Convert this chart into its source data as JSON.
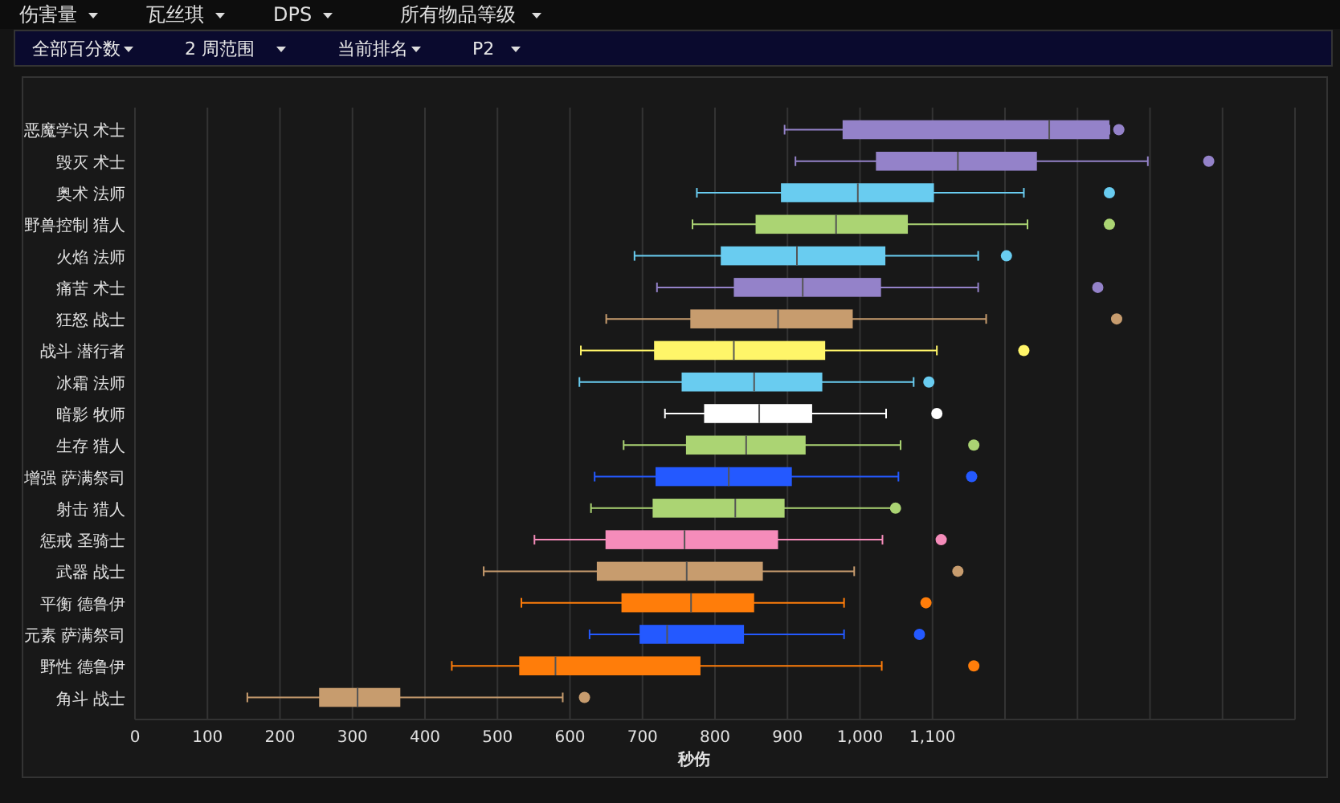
{
  "chart_data": {
    "type": "box",
    "orientation": "horizontal",
    "xlabel": "秒伤",
    "categories": [
      "恶魔学识 术士",
      "毁灭 术士",
      "奥术 法师",
      "野兽控制 猎人",
      "火焰 法师",
      "痛苦 术士",
      "狂怒 战士",
      "战斗 潜行者",
      "冰霜 法师",
      "暗影 牧师",
      "生存 猎人",
      "增强 萨满祭司",
      "射击 猎人",
      "惩戒 圣骑士",
      "武器 战士",
      "平衡 德鲁伊",
      "元素 萨满祭司",
      "野性 德鲁伊",
      "角斗 战士"
    ],
    "colors": [
      "#9482c9",
      "#9482c9",
      "#69ccf0",
      "#abd473",
      "#69ccf0",
      "#9482c9",
      "#c79c6e",
      "#fff569",
      "#69ccf0",
      "#ffffff",
      "#abd473",
      "#2459ff",
      "#abd473",
      "#f58cba",
      "#c79c6e",
      "#ff7d0a",
      "#2459ff",
      "#ff7d0a",
      "#c79c6e"
    ],
    "boxes": [
      {
        "low": 896,
        "q1": 976,
        "median": 1261,
        "q3": 1344,
        "high": 1344,
        "outliers": [
          1357
        ]
      },
      {
        "low": 911,
        "q1": 1022,
        "median": 1135,
        "q3": 1244,
        "high": 1397,
        "outliers": [
          1481
        ]
      },
      {
        "low": 775,
        "q1": 891,
        "median": 997,
        "q3": 1102,
        "high": 1226,
        "outliers": [
          1344
        ]
      },
      {
        "low": 769,
        "q1": 856,
        "median": 967,
        "q3": 1066,
        "high": 1231,
        "outliers": [
          1344
        ]
      },
      {
        "low": 689,
        "q1": 808,
        "median": 913,
        "q3": 1035,
        "high": 1163,
        "outliers": [
          1202
        ]
      },
      {
        "low": 720,
        "q1": 826,
        "median": 921,
        "q3": 1029,
        "high": 1163,
        "outliers": [
          1328
        ]
      },
      {
        "low": 650,
        "q1": 766,
        "median": 887,
        "q3": 990,
        "high": 1174,
        "outliers": [
          1354
        ]
      },
      {
        "low": 615,
        "q1": 716,
        "median": 826,
        "q3": 952,
        "high": 1106,
        "outliers": [
          1226
        ]
      },
      {
        "low": 613,
        "q1": 754,
        "median": 854,
        "q3": 948,
        "high": 1074,
        "outliers": [
          1095
        ]
      },
      {
        "low": 731,
        "q1": 785,
        "median": 861,
        "q3": 934,
        "high": 1036,
        "outliers": [
          1106
        ]
      },
      {
        "low": 674,
        "q1": 760,
        "median": 843,
        "q3": 925,
        "high": 1056,
        "outliers": [
          1157
        ]
      },
      {
        "low": 634,
        "q1": 718,
        "median": 819,
        "q3": 906,
        "high": 1053,
        "outliers": [
          1154
        ]
      },
      {
        "low": 629,
        "q1": 714,
        "median": 828,
        "q3": 896,
        "high": 1046,
        "outliers": [
          1049
        ]
      },
      {
        "low": 551,
        "q1": 649,
        "median": 758,
        "q3": 887,
        "high": 1031,
        "outliers": [
          1112
        ]
      },
      {
        "low": 481,
        "q1": 637,
        "median": 761,
        "q3": 866,
        "high": 992,
        "outliers": [
          1135
        ]
      },
      {
        "low": 533,
        "q1": 671,
        "median": 767,
        "q3": 854,
        "high": 978,
        "outliers": [
          1091
        ]
      },
      {
        "low": 627,
        "q1": 696,
        "median": 734,
        "q3": 840,
        "high": 978,
        "outliers": [
          1082
        ]
      },
      {
        "low": 437,
        "q1": 530,
        "median": 580,
        "q3": 780,
        "high": 1030,
        "outliers": [
          1157
        ]
      },
      {
        "low": 155,
        "q1": 254,
        "median": 307,
        "q3": 366,
        "high": 590,
        "outliers": [
          620
        ]
      }
    ],
    "xlim": [
      0,
      1600
    ],
    "xticks": [
      0,
      100,
      200,
      300,
      400,
      500,
      600,
      700,
      800,
      900,
      {
        "value": 1000,
        "label": "1,000"
      },
      {
        "value": 1100,
        "label": "1,100"
      },
      {
        "value": 1200,
        "label": null
      },
      {
        "value": 1300,
        "label": null
      },
      {
        "value": 1400,
        "label": null
      },
      {
        "value": 1500,
        "label": null
      },
      {
        "value": 1600,
        "label": null
      }
    ],
    "grid": "x",
    "annotations": [
      "伤害量",
      "瓦丝琪",
      "DPS",
      "所有物品等级",
      "全部百分数",
      "2 周范围",
      "当前排名",
      "P2"
    ]
  }
}
